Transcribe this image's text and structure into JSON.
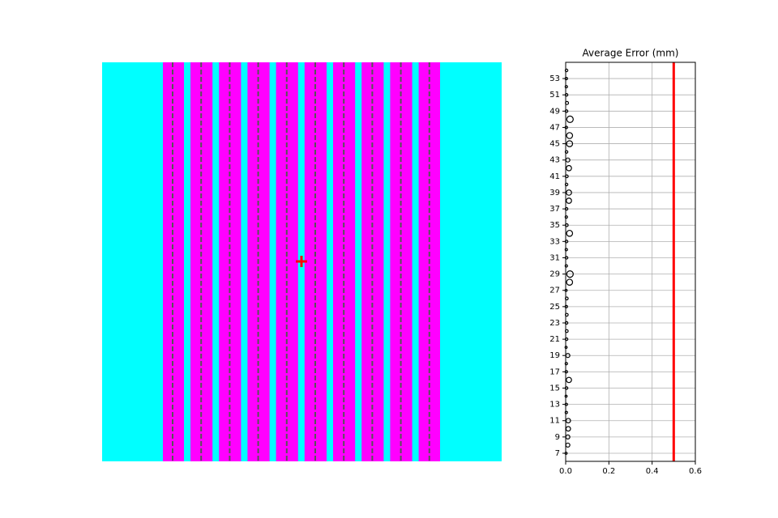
{
  "chart_data": {
    "type": "scatter",
    "title": "Average Error (mm)",
    "categories": [
      7,
      null,
      9,
      null,
      11,
      null,
      13,
      null,
      15,
      null,
      17,
      null,
      19,
      null,
      21,
      null,
      23,
      null,
      25,
      null,
      27,
      null,
      29,
      null,
      31,
      null,
      33,
      null,
      35,
      null,
      37,
      null,
      39,
      null,
      41,
      null,
      43,
      null,
      45,
      null,
      47,
      null,
      49,
      null,
      51,
      null,
      53,
      null
    ],
    "values": [
      0.002,
      0.01,
      0.01,
      0.012,
      0.012,
      0.003,
      0.003,
      0.002,
      0.004,
      0.015,
      0.003,
      0.003,
      0.01,
      0.002,
      0.004,
      0.005,
      0.004,
      0.005,
      0.003,
      0.005,
      0.002,
      0.018,
      0.02,
      0.003,
      0.004,
      0.003,
      0.004,
      0.018,
      0.005,
      0.003,
      0.004,
      0.015,
      0.015,
      0.004,
      0.005,
      0.015,
      0.01,
      0.004,
      0.018,
      0.018,
      0.003,
      0.02,
      0.004,
      0.006,
      0.004,
      0.003,
      0.003,
      0.004
    ],
    "color": "#000000",
    "xlim": [
      0,
      0.6
    ],
    "xticks": [
      {
        "value": 0,
        "label": "0.0"
      },
      0.2,
      0.4,
      0.6
    ],
    "grid": true,
    "threshold": 0.5,
    "threshold_color": "#ff0000"
  }
}
